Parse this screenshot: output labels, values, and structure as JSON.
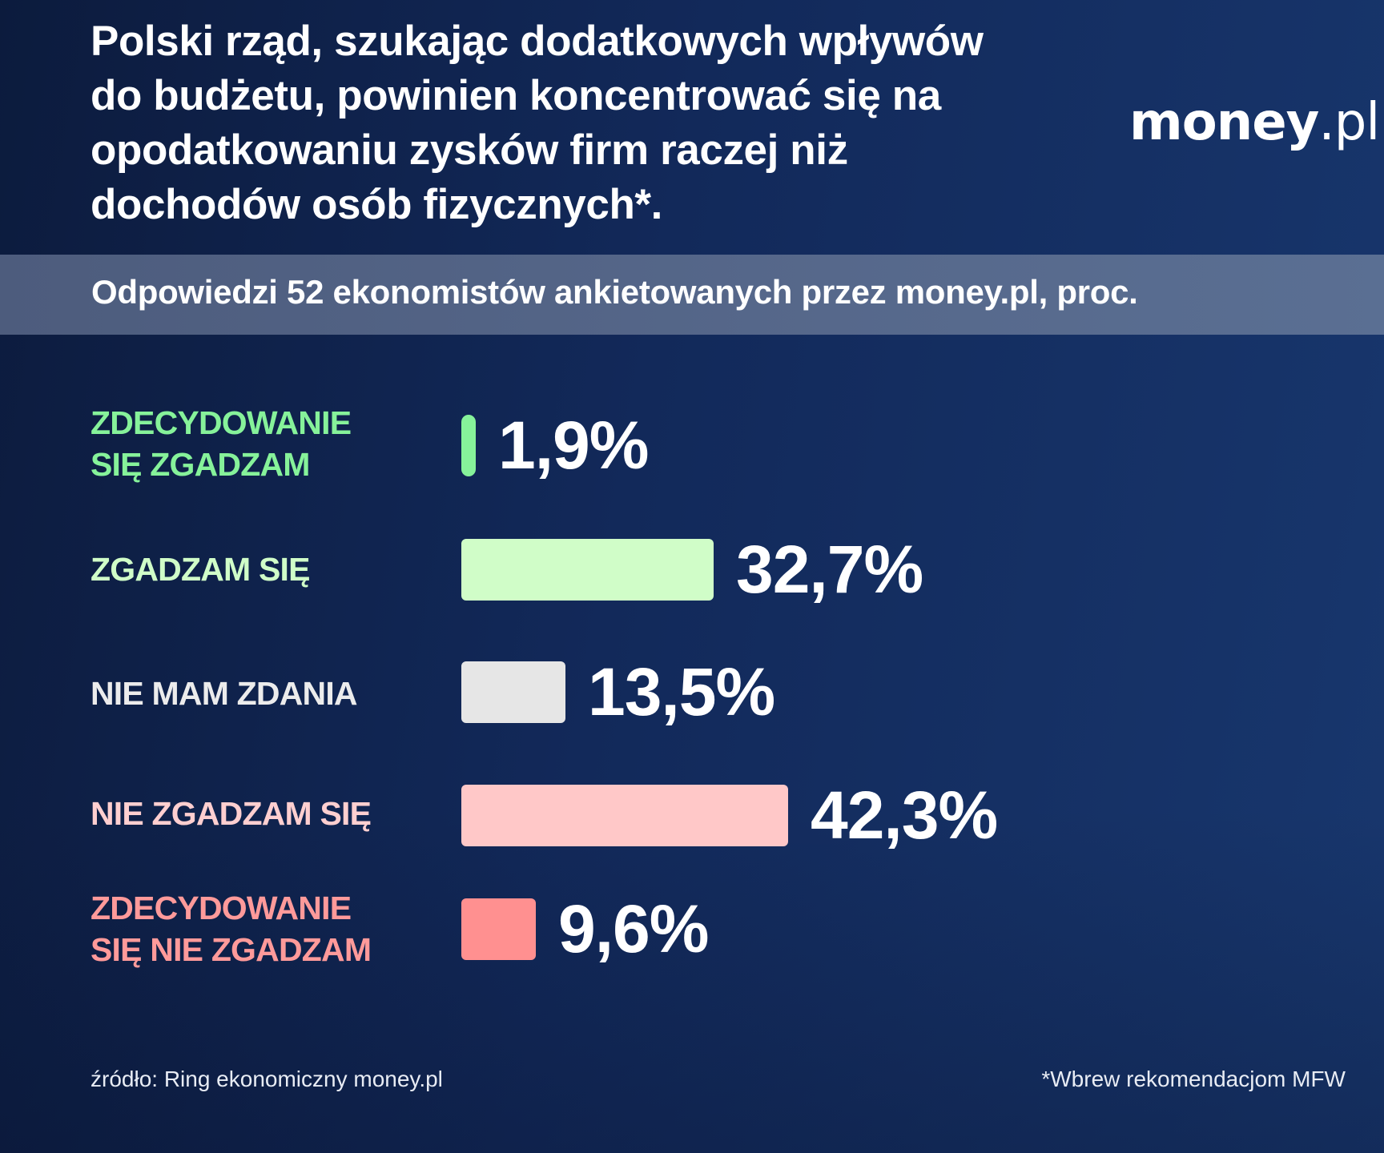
{
  "header": {
    "title_lines": [
      "Polski rząd, szukając dodatkowych wpływów",
      "do budżetu, powinien koncentrować się na",
      "opodatkowaniu zysków firm raczej niż",
      "dochodów osób fizycznych*."
    ],
    "logo": {
      "bold": "money",
      "light": ".pl"
    },
    "subtitle": "Odpowiedzi 52 ekonomistów ankietowanych przez money.pl, proc."
  },
  "colors": {
    "background_left": "#0c1b3d",
    "background_right": "#18376e",
    "band": "#52638a",
    "strongly_agree": "#86f29a",
    "agree": "#d0fdc8",
    "no_opinion": "#e6e6e6",
    "disagree": "#ffc8c8",
    "strongly_disagree": "#ff9090"
  },
  "rows": [
    {
      "label_lines": [
        "ZDECYDOWANIE",
        "SIĘ ZGADZAM"
      ],
      "value_label": "1,9%",
      "color": "#86f29a",
      "label_color": "#86f29a"
    },
    {
      "label_lines": [
        "ZGADZAM SIĘ"
      ],
      "value_label": "32,7%",
      "color": "#d0fdc8",
      "label_color": "#d0fdc8"
    },
    {
      "label_lines": [
        "NIE MAM ZDANIA"
      ],
      "value_label": "13,5%",
      "color": "#e6e6e6",
      "label_color": "#ececec"
    },
    {
      "label_lines": [
        "NIE ZGADZAM SIĘ"
      ],
      "value_label": "42,3%",
      "color": "#ffc8c8",
      "label_color": "#ffcfd0"
    },
    {
      "label_lines": [
        "ZDECYDOWANIE",
        "SIĘ NIE ZGADZAM"
      ],
      "value_label": "9,6%",
      "color": "#ff9090",
      "label_color": "#ff9a9a"
    }
  ],
  "footer": {
    "source": "źródło: Ring ekonomiczny money.pl",
    "note": "*Wbrew rekomendacjom MFW"
  },
  "chart_data": {
    "type": "bar",
    "orientation": "horizontal",
    "title": "Polski rząd, szukając dodatkowych wpływów do budżetu, powinien koncentrować się na opodatkowaniu zysków firm raczej niż dochodów osób fizycznych*.",
    "subtitle": "Odpowiedzi 52 ekonomistów ankietowanych przez money.pl, proc.",
    "categories": [
      "Zdecydowanie się zgadzam",
      "Zgadzam się",
      "Nie mam zdania",
      "Nie zgadzam się",
      "Zdecydowanie się nie zgadzam"
    ],
    "values": [
      1.9,
      32.7,
      13.5,
      42.3,
      9.6
    ],
    "value_labels": [
      "1,9%",
      "32,7%",
      "13,5%",
      "42,3%",
      "9,6%"
    ],
    "colors": [
      "#86f29a",
      "#d0fdc8",
      "#e6e6e6",
      "#ffc8c8",
      "#ff9090"
    ],
    "xlabel": "",
    "ylabel": "",
    "unit": "%",
    "grid": false,
    "legend": false,
    "annotations": [
      "źródło: Ring ekonomiczny money.pl",
      "*Wbrew rekomendacjom MFW"
    ]
  }
}
